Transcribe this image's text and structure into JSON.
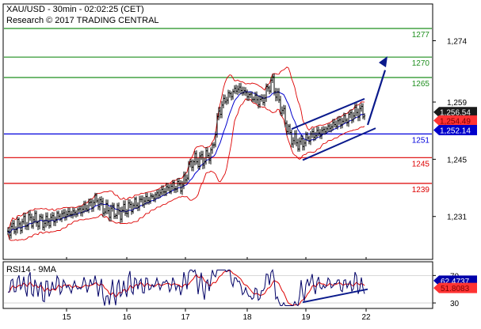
{
  "chart_data": [
    {
      "type": "candlestick",
      "title": "XAU/USD - 30min - 02:02:25 (CET)",
      "subtitle": "Research © 2017 TRADING CENTRAL",
      "x_tick_labels": [
        "15",
        "16",
        "17",
        "18",
        "19",
        "22"
      ],
      "y_tick_labels": [
        "1,274",
        "1,259",
        "1,245",
        "1,231"
      ],
      "y_ticks": [
        1274,
        1259,
        1245,
        1231
      ],
      "ylim": [
        1220.5,
        1283
      ],
      "grid": false,
      "levels": [
        {
          "label": "1277",
          "value": 1277,
          "color": "#1f8f1f"
        },
        {
          "label": "1270",
          "value": 1270,
          "color": "#1f8f1f"
        },
        {
          "label": "1265",
          "value": 1265,
          "color": "#1f8f1f"
        },
        {
          "label": "1251",
          "value": 1251.2,
          "color": "#0000dd"
        },
        {
          "label": "1245",
          "value": 1245.4,
          "color": "#dd0000"
        },
        {
          "label": "1239",
          "value": 1239.1,
          "color": "#dd0000"
        }
      ],
      "price_badges": [
        {
          "label": "1,256.54",
          "value": 1256.54,
          "color": "#1a1a1a",
          "text_color": "#ffffff"
        },
        {
          "label": "1,254.49",
          "value": 1254.49,
          "color": "#ff3333",
          "text_color": "#7a0000"
        },
        {
          "label": "1,252.14",
          "value": 1252.14,
          "color": "#0000cc",
          "text_color": "#ffffff"
        }
      ],
      "trend": "up",
      "colors": {
        "price": "#000000",
        "ma_fast": "#0000cc",
        "bollinger": "#dd0000",
        "forecast_arrow": "#0a1a8c"
      }
    },
    {
      "type": "line",
      "title": "RSI14 - 9MA",
      "y_tick_labels": [
        "70",
        "30"
      ],
      "y_ticks": [
        70,
        30
      ],
      "ylim": [
        22,
        90
      ],
      "series": [
        {
          "name": "",
          "color": "#000066"
        },
        {
          "name": "",
          "color": "#dd0000"
        }
      ],
      "value_badges": [
        {
          "label": "62.4737",
          "value": 62.4737,
          "color": "#0000aa",
          "text_color": "#ffffff"
        },
        {
          "label": "51.8083",
          "value": 51.8083,
          "color": "#ff3333",
          "text_color": "#7a0000"
        }
      ],
      "trend": "up"
    }
  ]
}
